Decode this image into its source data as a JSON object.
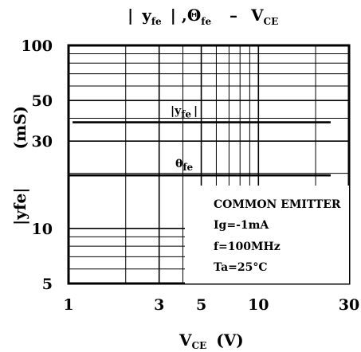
{
  "chart_data": {
    "type": "line",
    "title": {
      "part1": "|",
      "part2": "y",
      "part3": "fe",
      "part4": "|",
      "part5": ",Θ",
      "part6": "fe",
      "part7": "–",
      "part8": "V",
      "part9": "CE"
    },
    "xlabel": {
      "main": "V",
      "sub": "CE",
      "unit": "(V)"
    },
    "ylabel": {
      "main": "|yfe|",
      "unit": "(mS)"
    },
    "x_scale": "log",
    "y_scale": "log",
    "xlim": [
      1,
      30
    ],
    "ylim": [
      5,
      100
    ],
    "x_ticks": [
      1,
      3,
      5,
      10,
      30
    ],
    "x_tick_labels": [
      "1",
      "3",
      "5",
      "10",
      "30"
    ],
    "y_ticks": [
      5,
      10,
      30,
      50,
      100
    ],
    "y_tick_labels": [
      "5",
      "10",
      "30",
      "50",
      "100"
    ],
    "grid": true,
    "series": [
      {
        "name_main": "|y",
        "name_sub": "fe",
        "name_end": "|",
        "x": [
          1.05,
          24
        ],
        "y": [
          38,
          38
        ]
      },
      {
        "name_main": "θ",
        "name_sub": "fe",
        "x": [
          1,
          24
        ],
        "y": [
          19.5,
          19.5
        ]
      }
    ],
    "annotation": {
      "lines": [
        "COMMON EMITTER",
        "Ig=-1mA",
        "f=100MHz",
        "Ta=25°C"
      ]
    }
  }
}
